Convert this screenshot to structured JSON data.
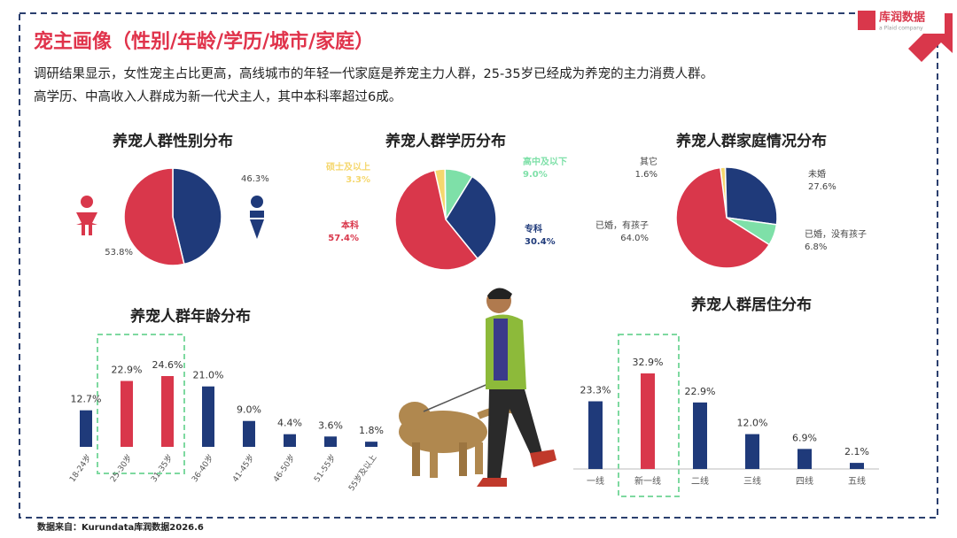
{
  "header": {
    "title": "宠主画像（性别/年龄/学历/城市/家庭）",
    "description": [
      "调研结果显示，女性宠主占比更高，高线城市的年轻一代家庭是养宠主力人群，25-35岁已经成为养宠的主力消费人群。",
      "高学历、中高收入人群成为新一代犬主人，其中本科率超过6成。"
    ],
    "logo": "库润数据",
    "logo_sub": "a Plaid company"
  },
  "source": "数据来自：Kurundata库润数据2026.6",
  "chart_data": [
    {
      "type": "pie",
      "title": "养宠人群性别分布",
      "values": [
        46.3,
        53.8
      ],
      "value_labels": [
        "46.3%",
        "53.8%"
      ],
      "colors": [
        "#1f3a7a",
        "#d9374b"
      ]
    },
    {
      "type": "pie",
      "title": "养宠人群学历分布",
      "categories": [
        "硕士及以上",
        "高中及以下",
        "专科",
        "本科"
      ],
      "values": [
        3.3,
        9.0,
        30.4,
        57.4
      ],
      "value_labels": [
        "3.3%",
        "9.0%",
        "30.4%",
        "57.4%"
      ],
      "colors": [
        "#f5d76e",
        "#7ee0a8",
        "#1f3a7a",
        "#d9374b"
      ]
    },
    {
      "type": "pie",
      "title": "养宠人群家庭情况分布",
      "categories": [
        "其它",
        "未婚",
        "已婚，没有孩子",
        "已婚，有孩子"
      ],
      "values": [
        1.6,
        27.6,
        6.8,
        64.0
      ],
      "value_labels": [
        "1.6%",
        "27.6%",
        "6.8%",
        "64.0%"
      ],
      "colors": [
        "#f5d76e",
        "#1f3a7a",
        "#7ee0a8",
        "#d9374b"
      ]
    },
    {
      "type": "bar",
      "title": "养宠人群年龄分布",
      "categories": [
        "18-24岁",
        "25-30岁",
        "31-35岁",
        "36-40岁",
        "41-45岁",
        "46-50岁",
        "51-55岁",
        "55岁及以上"
      ],
      "values": [
        12.7,
        22.9,
        24.6,
        21.0,
        9.0,
        4.4,
        3.6,
        1.8
      ],
      "value_labels": [
        "12.7%",
        "22.9%",
        "24.6%",
        "21.0%",
        "9.0%",
        "4.4%",
        "3.6%",
        "1.8%"
      ],
      "colors": [
        "#1f3a7a",
        "#d9374b",
        "#d9374b",
        "#1f3a7a",
        "#1f3a7a",
        "#1f3a7a",
        "#1f3a7a",
        "#1f3a7a"
      ]
    },
    {
      "type": "bar",
      "title": "养宠人群居住分布",
      "categories": [
        "一线",
        "新一线",
        "二线",
        "三线",
        "四线",
        "五线"
      ],
      "values": [
        23.3,
        32.9,
        22.9,
        12.0,
        6.9,
        2.1
      ],
      "value_labels": [
        "23.3%",
        "32.9%",
        "22.9%",
        "12.0%",
        "6.9%",
        "2.1%"
      ],
      "colors": [
        "#1f3a7a",
        "#d9374b",
        "#1f3a7a",
        "#1f3a7a",
        "#1f3a7a",
        "#1f3a7a"
      ]
    }
  ]
}
